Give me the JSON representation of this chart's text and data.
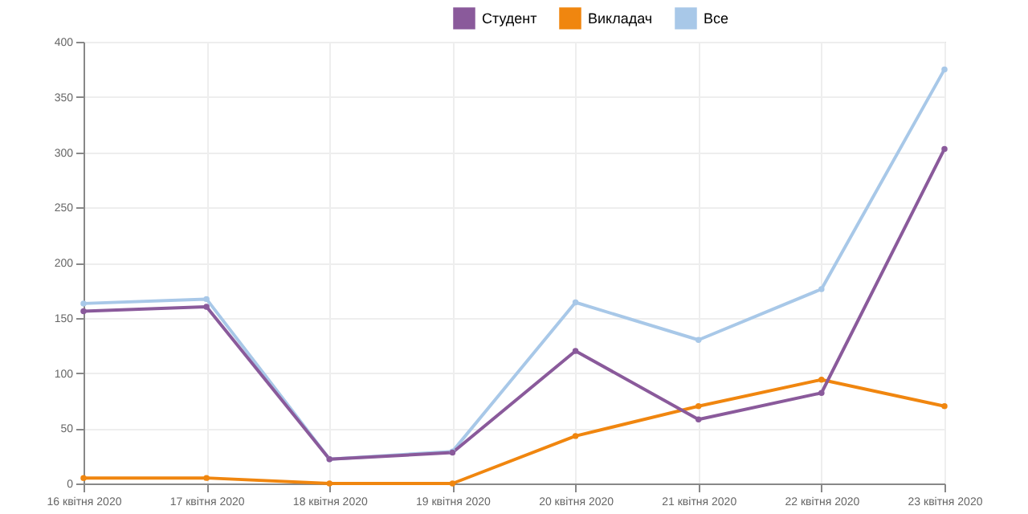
{
  "chart_data": {
    "type": "line",
    "categories": [
      "16 квітня 2020",
      "17 квітня 2020",
      "18 квітня 2020",
      "19 квітня 2020",
      "20 квітня 2020",
      "21 квітня 2020",
      "22 квітня 2020",
      "23 квітня 2020"
    ],
    "series": [
      {
        "name": "Студент",
        "color": "#8a5a9b",
        "values": [
          156,
          160,
          22,
          28,
          120,
          58,
          82,
          303
        ]
      },
      {
        "name": "Викладач",
        "color": "#f0860f",
        "values": [
          5,
          5,
          0,
          0,
          43,
          70,
          94,
          70
        ]
      },
      {
        "name": "Все",
        "color": "#a8c8e8",
        "values": [
          163,
          167,
          22,
          29,
          164,
          130,
          176,
          375
        ]
      }
    ],
    "ylim": [
      0,
      400
    ],
    "yticks": [
      0,
      50,
      100,
      150,
      200,
      250,
      300,
      350,
      400
    ],
    "grid": true,
    "legend": "top",
    "marker": "circle",
    "line_style": "solid"
  }
}
